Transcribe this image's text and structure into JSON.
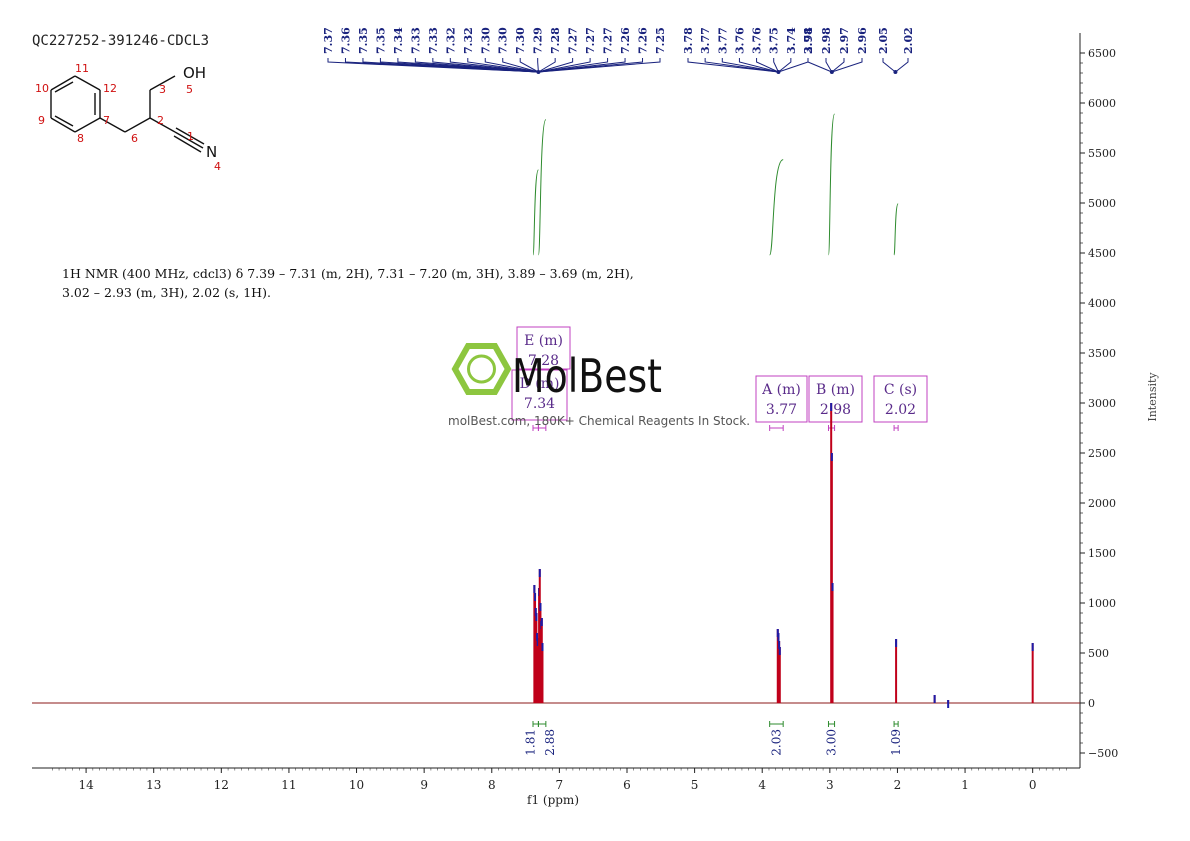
{
  "sample_id": "QC227252-391246-CDCL3",
  "nmr_text": {
    "line1": "1H NMR (400 MHz, cdcl3) δ 7.39 – 7.31 (m, 2H), 7.31 – 7.20 (m, 3H), 3.89 – 3.69 (m, 2H),",
    "line2": "3.02 – 2.93 (m, 3H), 2.02 (s, 1H)."
  },
  "structure": {
    "atom_labels": [
      "11",
      "12",
      "10",
      "7",
      "9",
      "8",
      "6",
      "2",
      "3",
      "5",
      "1",
      "4"
    ],
    "oh_label": "OH",
    "n_label": "N"
  },
  "watermark": {
    "brand": "MolBest",
    "tagline": "molBest.com, 180K+ Chemical Reagents In Stock.",
    "color": "#8dc63f"
  },
  "chart_data": {
    "type": "line",
    "xlabel": "f1 (ppm)",
    "ylabel": "Intensity",
    "xlim": [
      14.8,
      -0.7
    ],
    "ylim": [
      -650,
      6700
    ],
    "x_ticks": [
      14,
      13,
      12,
      11,
      10,
      9,
      8,
      7,
      6,
      5,
      4,
      3,
      2,
      1,
      0
    ],
    "y_ticks": [
      -500,
      0,
      500,
      1000,
      1500,
      2000,
      2500,
      3000,
      3500,
      4000,
      4500,
      5000,
      5500,
      6000,
      6500
    ],
    "peaks": [
      {
        "ppm": 7.37,
        "height": 1180
      },
      {
        "ppm": 7.36,
        "height": 1100
      },
      {
        "ppm": 7.35,
        "height": 950
      },
      {
        "ppm": 7.34,
        "height": 900
      },
      {
        "ppm": 7.33,
        "height": 700
      },
      {
        "ppm": 7.32,
        "height": 650
      },
      {
        "ppm": 7.3,
        "height": 1150
      },
      {
        "ppm": 7.29,
        "height": 1340
      },
      {
        "ppm": 7.28,
        "height": 1000
      },
      {
        "ppm": 7.27,
        "height": 820
      },
      {
        "ppm": 7.26,
        "height": 850
      },
      {
        "ppm": 7.25,
        "height": 600
      },
      {
        "ppm": 3.77,
        "height": 740
      },
      {
        "ppm": 3.76,
        "height": 700
      },
      {
        "ppm": 3.75,
        "height": 620
      },
      {
        "ppm": 3.74,
        "height": 560
      },
      {
        "ppm": 2.98,
        "height": 3000
      },
      {
        "ppm": 2.97,
        "height": 2500
      },
      {
        "ppm": 2.96,
        "height": 1200
      },
      {
        "ppm": 2.02,
        "height": 640
      },
      {
        "ppm": 1.45,
        "height": 80
      },
      {
        "ppm": 1.25,
        "height": 30
      },
      {
        "ppm": 0.0,
        "height": 600
      }
    ],
    "peak_labels": [
      {
        "text": "7.37",
        "ppm": 7.37
      },
      {
        "text": "7.36",
        "ppm": 7.36
      },
      {
        "text": "7.35",
        "ppm": 7.35
      },
      {
        "text": "7.35",
        "ppm": 7.35
      },
      {
        "text": "7.34",
        "ppm": 7.34
      },
      {
        "text": "7.33",
        "ppm": 7.33
      },
      {
        "text": "7.33",
        "ppm": 7.33
      },
      {
        "text": "7.32",
        "ppm": 7.32
      },
      {
        "text": "7.32",
        "ppm": 7.32
      },
      {
        "text": "7.30",
        "ppm": 7.3
      },
      {
        "text": "7.30",
        "ppm": 7.3
      },
      {
        "text": "7.30",
        "ppm": 7.3
      },
      {
        "text": "7.29",
        "ppm": 7.29
      },
      {
        "text": "7.28",
        "ppm": 7.28
      },
      {
        "text": "7.27",
        "ppm": 7.27
      },
      {
        "text": "7.27",
        "ppm": 7.27
      },
      {
        "text": "7.27",
        "ppm": 7.27
      },
      {
        "text": "7.26",
        "ppm": 7.26
      },
      {
        "text": "7.26",
        "ppm": 7.26
      },
      {
        "text": "7.25",
        "ppm": 7.25
      },
      {
        "text": "3.78",
        "ppm": 3.78
      },
      {
        "text": "3.77",
        "ppm": 3.77
      },
      {
        "text": "3.77",
        "ppm": 3.77
      },
      {
        "text": "3.76",
        "ppm": 3.76
      },
      {
        "text": "3.76",
        "ppm": 3.76
      },
      {
        "text": "3.75",
        "ppm": 3.75
      },
      {
        "text": "3.74",
        "ppm": 3.74
      },
      {
        "text": "3.74",
        "ppm": 3.74
      },
      {
        "text": "2.98",
        "ppm": 2.98
      },
      {
        "text": "2.98",
        "ppm": 2.98
      },
      {
        "text": "2.97",
        "ppm": 2.97
      },
      {
        "text": "2.96",
        "ppm": 2.96
      },
      {
        "text": "2.05",
        "ppm": 2.05
      },
      {
        "text": "2.02",
        "ppm": 2.02
      }
    ],
    "multiplets": [
      {
        "label": "E (m)",
        "value": "7.28",
        "ppm": 7.28,
        "range": [
          7.31,
          7.2
        ]
      },
      {
        "label": "D (m)",
        "value": "7.34",
        "ppm": 7.34,
        "range": [
          7.39,
          7.31
        ]
      },
      {
        "label": "A (m)",
        "value": "3.77",
        "ppm": 3.77,
        "range": [
          3.89,
          3.69
        ]
      },
      {
        "label": "B (m)",
        "value": "2.98",
        "ppm": 2.98,
        "range": [
          3.02,
          2.93
        ]
      },
      {
        "label": "C (s)",
        "value": "2.02",
        "ppm": 2.02,
        "range": [
          2.05,
          1.99
        ]
      }
    ],
    "integrals": [
      {
        "value": "1.81",
        "range": [
          7.39,
          7.31
        ]
      },
      {
        "value": "2.88",
        "range": [
          7.31,
          7.2
        ]
      },
      {
        "value": "2.03",
        "range": [
          3.89,
          3.69
        ]
      },
      {
        "value": "3.00",
        "range": [
          3.02,
          2.93
        ]
      },
      {
        "value": "1.09",
        "range": [
          2.05,
          1.99
        ]
      }
    ],
    "colors": {
      "spectrum": "#8b1a1a",
      "peak_fill": "#c0001a",
      "peak_tip": "#1c1ca8",
      "label": "#1a237e",
      "integral": "#2e8b2e",
      "multiplet": "#c040c0"
    }
  }
}
